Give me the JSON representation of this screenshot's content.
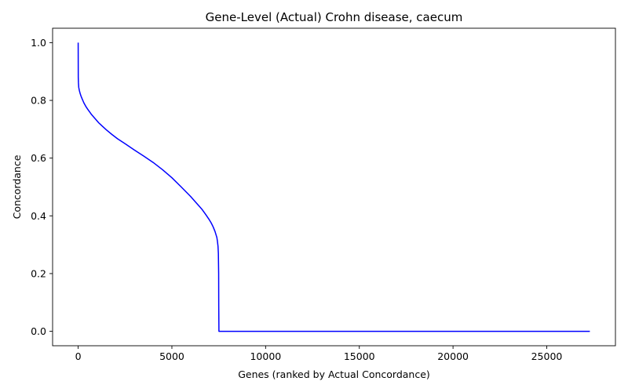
{
  "chart_data": {
    "type": "line",
    "title": "Gene-Level (Actual) Crohn disease, caecum",
    "xlabel": "Genes (ranked by Actual Concordance)",
    "ylabel": "Concordance",
    "xlim": [
      -1365,
      28665
    ],
    "ylim": [
      -0.05,
      1.05
    ],
    "xticks": [
      0,
      5000,
      10000,
      15000,
      20000,
      25000
    ],
    "yticks": [
      0.0,
      0.2,
      0.4,
      0.6,
      0.8,
      1.0
    ],
    "xtick_labels": [
      "0",
      "5000",
      "10000",
      "15000",
      "20000",
      "25000"
    ],
    "ytick_labels": [
      "0.0",
      "0.2",
      "0.4",
      "0.6",
      "0.8",
      "1.0"
    ],
    "grid": false,
    "series": [
      {
        "color": "#0000ff",
        "x": [
          0,
          5,
          15,
          30,
          60,
          100,
          150,
          200,
          300,
          400,
          500,
          700,
          900,
          1100,
          1300,
          1500,
          1800,
          2100,
          2500,
          3000,
          3500,
          4000,
          4500,
          5000,
          5500,
          6000,
          6300,
          6600,
          6800,
          7000,
          7100,
          7200,
          7300,
          7400,
          7430,
          7460,
          7480,
          7495,
          7500,
          7510,
          8000,
          10000,
          15000,
          20000,
          25000,
          27300
        ],
        "y": [
          1.0,
          0.88,
          0.86,
          0.845,
          0.835,
          0.825,
          0.815,
          0.807,
          0.792,
          0.78,
          0.77,
          0.752,
          0.737,
          0.722,
          0.71,
          0.698,
          0.682,
          0.667,
          0.65,
          0.628,
          0.607,
          0.585,
          0.56,
          0.532,
          0.5,
          0.467,
          0.445,
          0.423,
          0.405,
          0.386,
          0.375,
          0.362,
          0.346,
          0.325,
          0.312,
          0.295,
          0.27,
          0.2,
          0.09,
          0.0,
          0.0,
          0.0,
          0.0,
          0.0,
          0.0,
          0.0
        ]
      }
    ]
  }
}
